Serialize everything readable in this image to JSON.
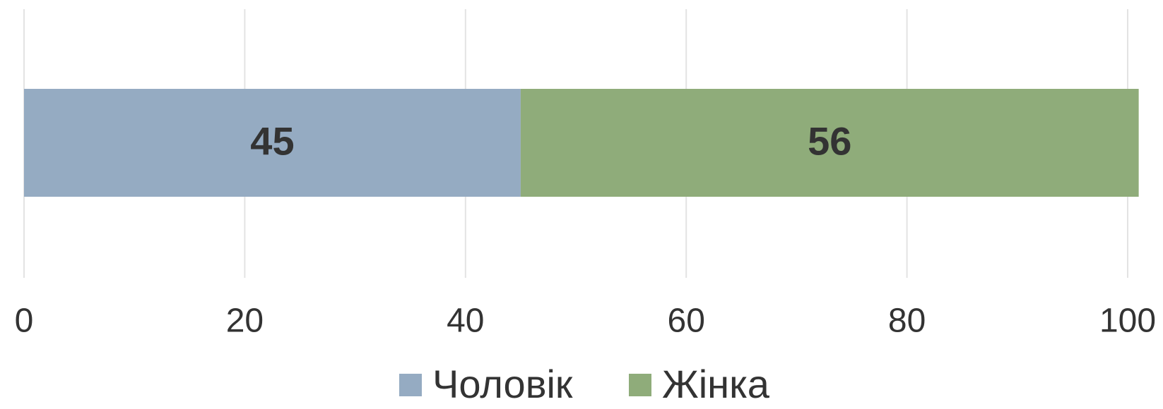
{
  "chart_data": {
    "type": "stacked_barh",
    "categories": [
      null
    ],
    "series": [
      {
        "name": "Чоловік",
        "color": "#95abc2",
        "values": [
          45
        ]
      },
      {
        "name": "Жінка",
        "color": "#8fac7a",
        "values": [
          56
        ]
      }
    ],
    "xlim": [
      0,
      100
    ],
    "xticks": [
      0,
      20,
      40,
      60,
      80,
      100
    ],
    "grid": true,
    "legend": "bottom"
  }
}
